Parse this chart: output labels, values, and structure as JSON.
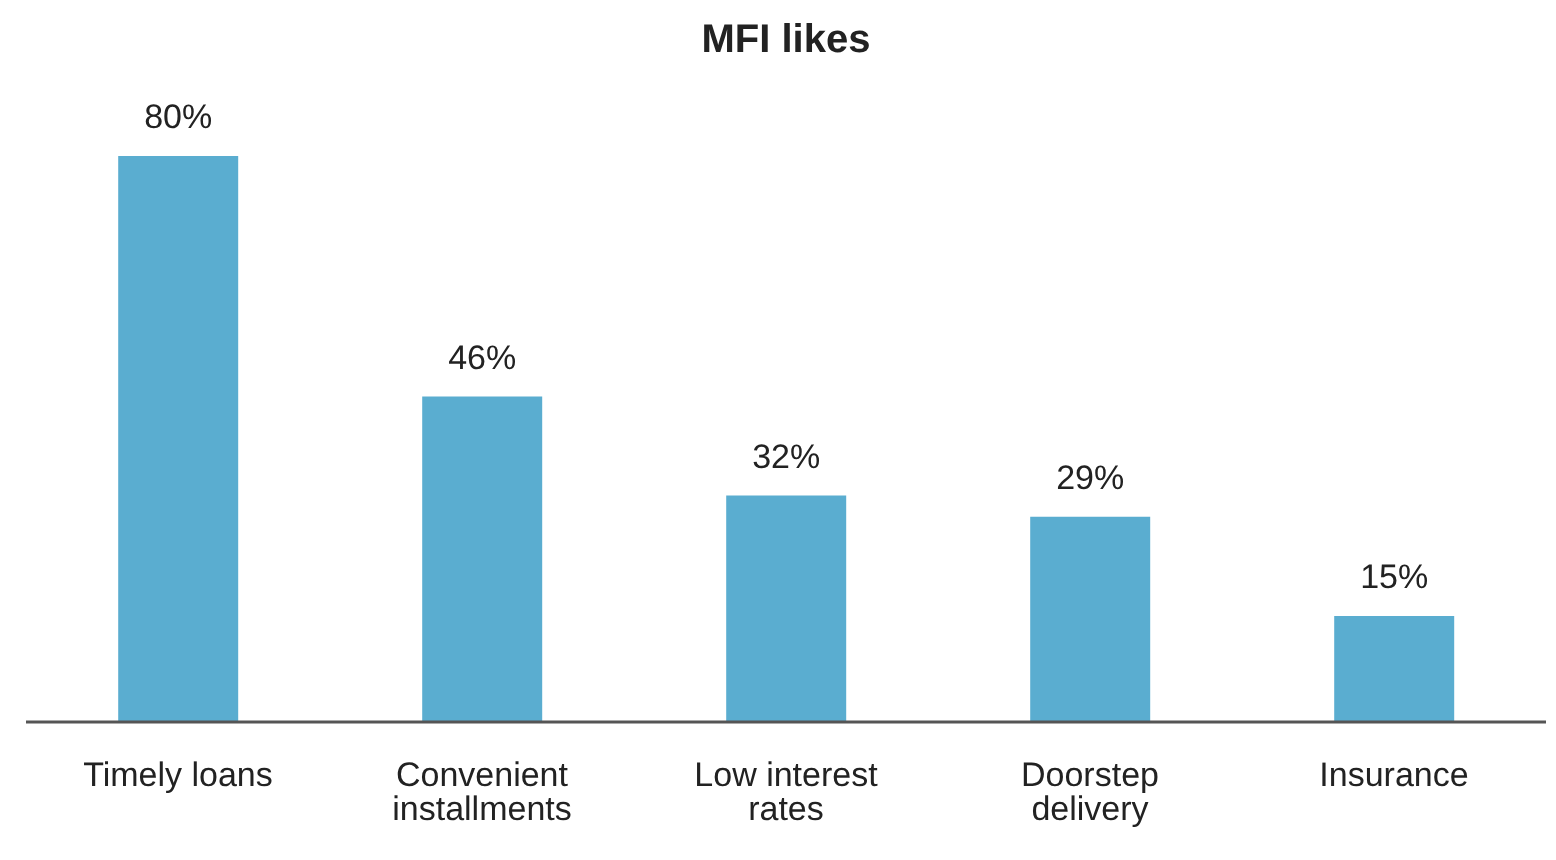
{
  "chart_data": {
    "type": "bar",
    "title": "MFI likes",
    "categories": [
      "Timely loans",
      "Convenient installments",
      "Low interest rates",
      "Doorstep delivery",
      "Insurance"
    ],
    "values": [
      80,
      46,
      32,
      29,
      15
    ],
    "value_labels": [
      "80%",
      "46%",
      "32%",
      "29%",
      "15%"
    ],
    "color": "#5aadd0"
  }
}
